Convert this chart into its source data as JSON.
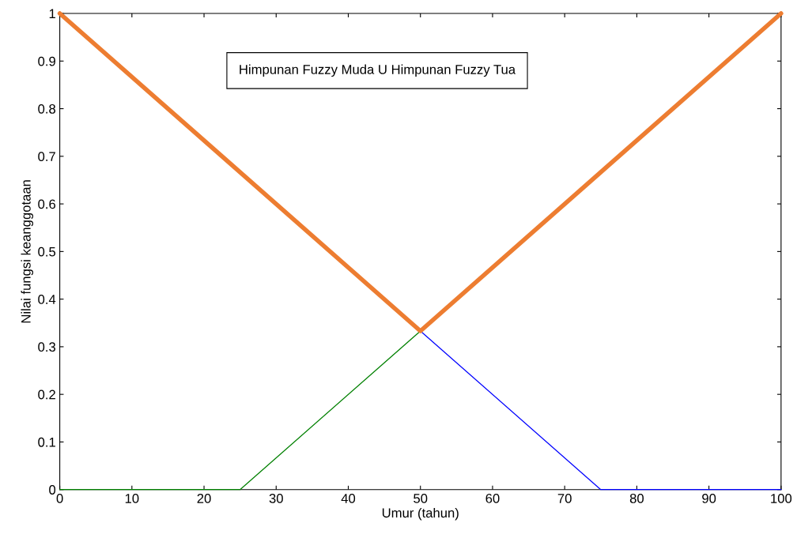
{
  "chart_data": {
    "type": "line",
    "xlabel": "Umur (tahun)",
    "ylabel": "Nilai fungsi keanggotaan",
    "annotations": [
      "Himpunan Fuzzy Muda U Himpunan Fuzzy Tua"
    ],
    "series": [
      {
        "color": "#008000",
        "x": [
          0,
          25,
          50
        ],
        "values": [
          0,
          0,
          0.333
        ]
      },
      {
        "color": "#0000ff",
        "x": [
          50,
          75,
          100
        ],
        "values": [
          0.333,
          0,
          0
        ]
      },
      {
        "color": "#ed7d31",
        "x": [
          0,
          50,
          100
        ],
        "values": [
          1,
          0.333,
          1
        ]
      }
    ],
    "xlim": [
      0,
      100
    ],
    "xticks": [
      0,
      10,
      20,
      30,
      40,
      50,
      60,
      70,
      80,
      90,
      100
    ],
    "ylim": [
      0,
      1
    ],
    "yticks": [
      0,
      0.1,
      0.2,
      0.3,
      0.4,
      0.5,
      0.6,
      0.7,
      0.8,
      0.9,
      1
    ],
    "grid": false,
    "legend": false,
    "marker": "none",
    "line_style": "solid"
  }
}
